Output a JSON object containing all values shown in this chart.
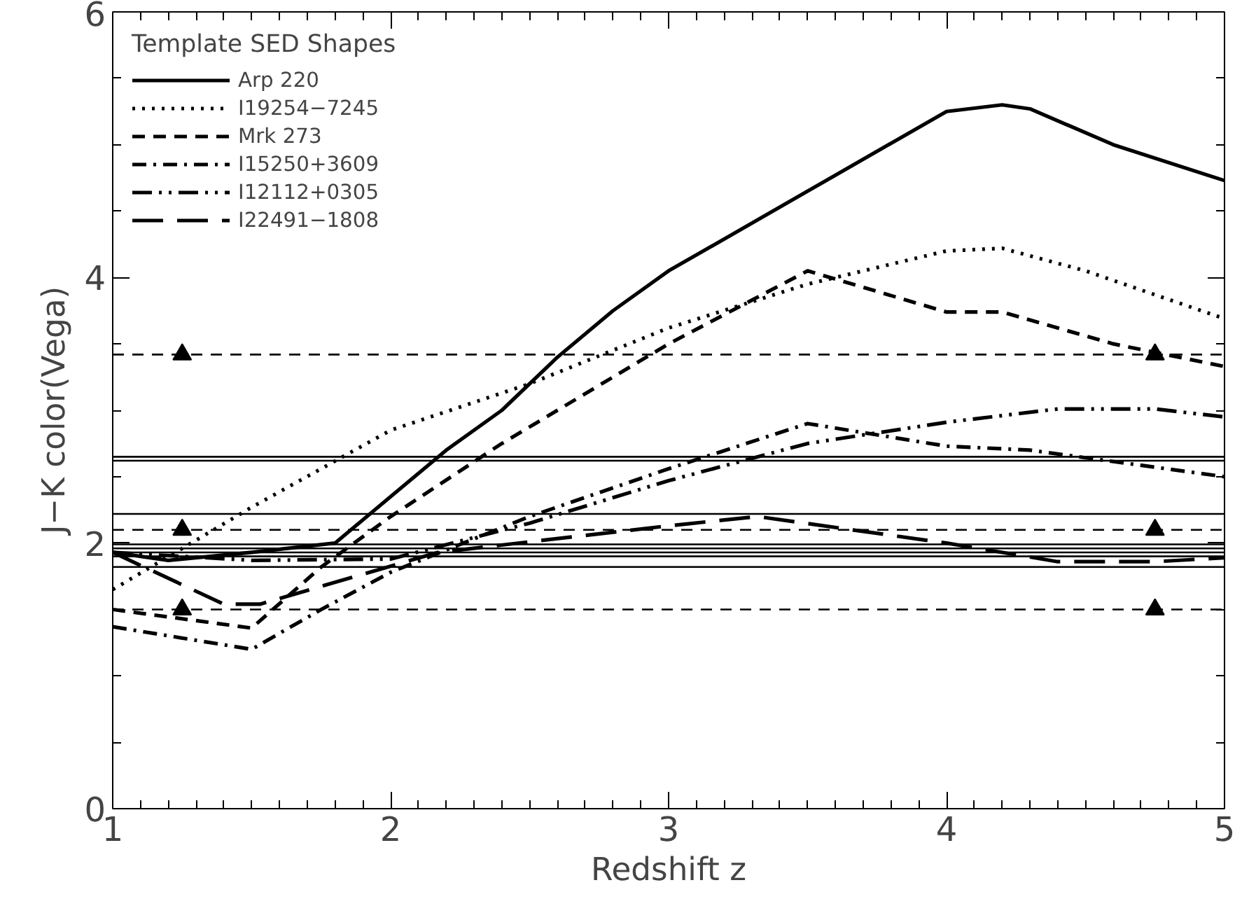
{
  "chart_data": {
    "type": "line",
    "xlabel": "Redshift z",
    "ylabel": "J−K color(Vega)",
    "legend_title": "Template SED Shapes",
    "legend": "top left",
    "grid": false,
    "xlim": [
      1,
      5
    ],
    "ylim": [
      0,
      6
    ],
    "xticks": [
      1,
      {
        "value": 1.1,
        "label": null
      },
      {
        "value": 1.2,
        "label": null
      },
      {
        "value": 1.3,
        "label": null
      },
      {
        "value": 1.4,
        "label": null
      },
      {
        "value": 1.5,
        "label": null
      },
      {
        "value": 1.6,
        "label": null
      },
      {
        "value": 1.7,
        "label": null
      },
      {
        "value": 1.8,
        "label": null
      },
      {
        "value": 1.9,
        "label": null
      },
      2,
      {
        "value": 2.1,
        "label": null
      },
      {
        "value": 2.2,
        "label": null
      },
      {
        "value": 2.3,
        "label": null
      },
      {
        "value": 2.4,
        "label": null
      },
      {
        "value": 2.5,
        "label": null
      },
      {
        "value": 2.6,
        "label": null
      },
      {
        "value": 2.7,
        "label": null
      },
      {
        "value": 2.8,
        "label": null
      },
      {
        "value": 2.9,
        "label": null
      },
      3,
      {
        "value": 3.1,
        "label": null
      },
      {
        "value": 3.2,
        "label": null
      },
      {
        "value": 3.3,
        "label": null
      },
      {
        "value": 3.4,
        "label": null
      },
      {
        "value": 3.5,
        "label": null
      },
      {
        "value": 3.6,
        "label": null
      },
      {
        "value": 3.7,
        "label": null
      },
      {
        "value": 3.8,
        "label": null
      },
      {
        "value": 3.9,
        "label": null
      },
      4,
      {
        "value": 4.1,
        "label": null
      },
      {
        "value": 4.2,
        "label": null
      },
      {
        "value": 4.3,
        "label": null
      },
      {
        "value": 4.4,
        "label": null
      },
      {
        "value": 4.5,
        "label": null
      },
      {
        "value": 4.6,
        "label": null
      },
      {
        "value": 4.7,
        "label": null
      },
      {
        "value": 4.8,
        "label": null
      },
      {
        "value": 4.9,
        "label": null
      },
      5
    ],
    "yticks": [
      0,
      {
        "value": 0.5,
        "label": null
      },
      {
        "value": 1,
        "label": null
      },
      {
        "value": 1.5,
        "label": null
      },
      2,
      {
        "value": 2.5,
        "label": null
      },
      {
        "value": 3,
        "label": null
      },
      {
        "value": 3.5,
        "label": null
      },
      4,
      {
        "value": 4.5,
        "label": null
      },
      {
        "value": 5,
        "label": null
      },
      {
        "value": 5.5,
        "label": null
      },
      6
    ],
    "series": [
      {
        "name": "Arp 220",
        "color": "#000000",
        "line_style": "solid",
        "x": [
          1,
          1.2,
          1.5,
          1.8,
          2.0,
          2.2,
          2.4,
          2.6,
          2.8,
          3.0,
          3.5,
          4.0,
          4.2,
          4.3,
          4.6,
          5.0
        ],
        "values": [
          1.93,
          1.87,
          1.93,
          2.0,
          2.35,
          2.7,
          3.0,
          3.4,
          3.75,
          4.05,
          4.65,
          5.25,
          5.3,
          5.27,
          5.0,
          4.73
        ]
      },
      {
        "name": "I19254−7245",
        "color": "#000000",
        "line_style": "dotted",
        "x": [
          1,
          1.5,
          2.0,
          2.5,
          3.0,
          3.5,
          4.0,
          4.2,
          4.5,
          5.0
        ],
        "values": [
          1.65,
          2.27,
          2.85,
          3.2,
          3.62,
          3.95,
          4.2,
          4.22,
          4.05,
          3.69
        ]
      },
      {
        "name": "Mrk 273",
        "color": "#000000",
        "line_style": "dashed",
        "x": [
          1,
          1.5,
          1.75,
          2.0,
          2.4,
          3.0,
          3.5,
          4.0,
          4.2,
          4.6,
          5.0
        ],
        "values": [
          1.5,
          1.36,
          1.82,
          2.2,
          2.75,
          3.5,
          4.05,
          3.74,
          3.74,
          3.5,
          3.33
        ]
      },
      {
        "name": "I15250+3609",
        "color": "#000000",
        "line_style": "dashdot",
        "x": [
          1,
          1.5,
          1.75,
          2.0,
          2.5,
          3.0,
          3.5,
          4.0,
          4.3,
          5.0
        ],
        "values": [
          1.37,
          1.2,
          1.5,
          1.78,
          2.2,
          2.56,
          2.9,
          2.73,
          2.7,
          2.5
        ]
      },
      {
        "name": "I12112+0305",
        "color": "#000000",
        "line_style": "dashdotdot",
        "x": [
          1,
          1.5,
          2.0,
          2.5,
          3.0,
          3.5,
          4.0,
          4.4,
          4.75,
          5.0
        ],
        "values": [
          1.93,
          1.87,
          1.88,
          2.15,
          2.47,
          2.75,
          2.91,
          3.01,
          3.01,
          2.95
        ]
      },
      {
        "name": "I22491−1808",
        "color": "#000000",
        "line_style": "longdash",
        "x": [
          1,
          1.4,
          1.53,
          2.17,
          3.0,
          3.32,
          4.0,
          4.4,
          4.75,
          5.0
        ],
        "values": [
          1.93,
          1.54,
          1.54,
          1.93,
          2.13,
          2.2,
          2.0,
          1.86,
          1.86,
          1.89
        ]
      },
      {
        "type": "scatter",
        "marker": "triangle",
        "color": "#000000",
        "x": [
          1.25,
          4.75,
          1.25,
          4.75,
          1.25,
          4.75
        ],
        "values": [
          3.42,
          3.42,
          2.1,
          2.1,
          1.5,
          1.5
        ]
      }
    ],
    "ref_lines": [
      {
        "axis": "y",
        "value": 3.42,
        "line_style": "dashed",
        "color": "#000000"
      },
      {
        "axis": "y",
        "value": 2.65,
        "line_style": "solid",
        "color": "#000000"
      },
      {
        "axis": "y",
        "value": 2.62,
        "line_style": "solid",
        "color": "#000000"
      },
      {
        "axis": "y",
        "value": 2.22,
        "line_style": "solid",
        "color": "#000000"
      },
      {
        "axis": "y",
        "value": 2.1,
        "line_style": "dashed",
        "color": "#000000"
      },
      {
        "axis": "y",
        "value": 1.99,
        "line_style": "solid",
        "color": "#000000"
      },
      {
        "axis": "y",
        "value": 1.96,
        "line_style": "solid",
        "color": "#000000"
      },
      {
        "axis": "y",
        "value": 1.93,
        "line_style": "solid",
        "color": "#000000"
      },
      {
        "axis": "y",
        "value": 1.9,
        "line_style": "solid",
        "color": "#000000"
      },
      {
        "axis": "y",
        "value": 1.82,
        "line_style": "solid",
        "color": "#000000"
      },
      {
        "axis": "y",
        "value": 1.5,
        "line_style": "dashed",
        "color": "#000000"
      }
    ]
  }
}
